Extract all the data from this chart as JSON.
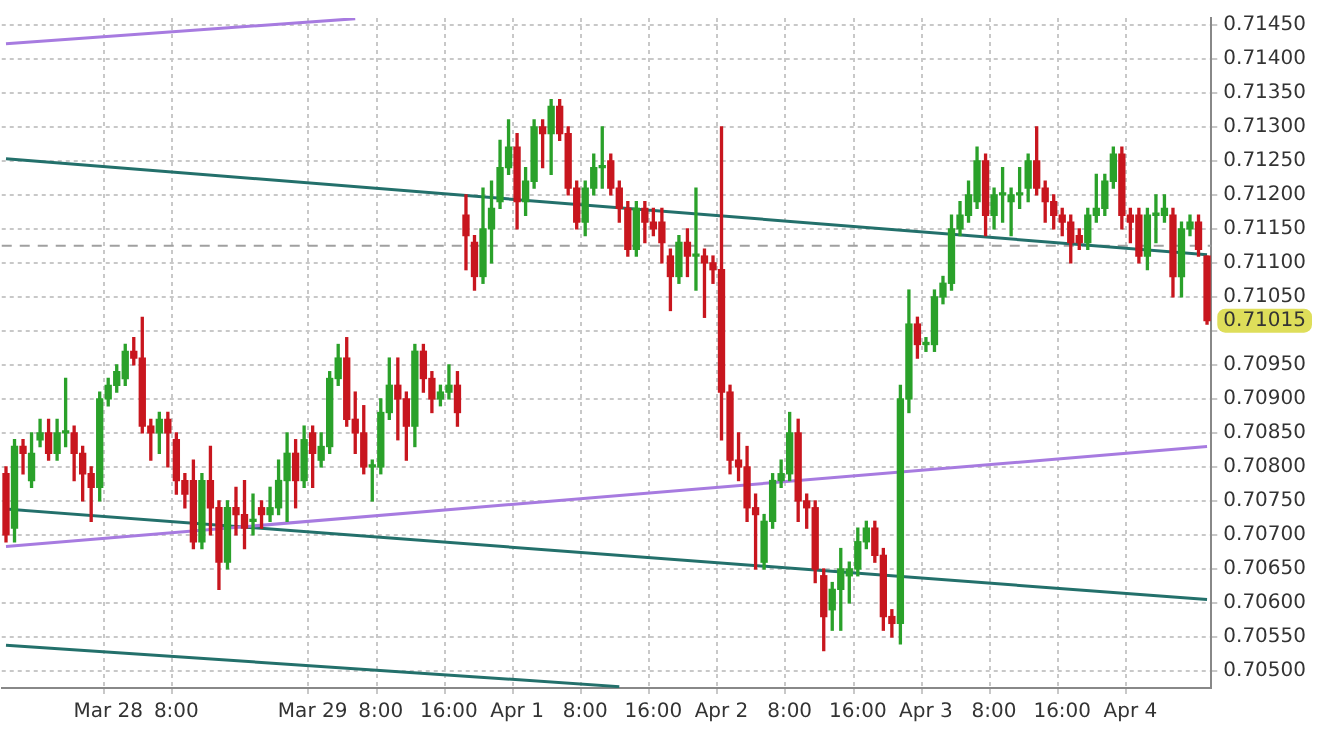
{
  "chart_data": {
    "type": "candlestick",
    "categories": [
      null,
      null,
      null,
      null,
      null,
      null,
      null,
      null,
      null,
      null,
      null,
      null,
      "Mar 28",
      null,
      null,
      null,
      null,
      null,
      null,
      null,
      "8:00",
      null,
      null,
      null,
      null,
      null,
      null,
      null,
      null,
      null,
      null,
      null,
      null,
      null,
      null,
      null,
      "Mar 29",
      null,
      null,
      null,
      null,
      null,
      null,
      null,
      "8:00",
      null,
      null,
      null,
      null,
      null,
      null,
      null,
      "16:00",
      null,
      null,
      null,
      null,
      null,
      null,
      null,
      "Apr 1",
      null,
      null,
      null,
      null,
      null,
      null,
      null,
      "8:00",
      null,
      null,
      null,
      null,
      null,
      null,
      null,
      "16:00",
      null,
      null,
      null,
      null,
      null,
      null,
      null,
      "Apr 2",
      null,
      null,
      null,
      null,
      null,
      null,
      null,
      "8:00",
      null,
      null,
      null,
      null,
      null,
      null,
      null,
      "16:00",
      null,
      null,
      null,
      null,
      null,
      null,
      null,
      "Apr 3",
      null,
      null,
      null,
      null,
      null,
      null,
      null,
      "8:00",
      null,
      null,
      null,
      null,
      null,
      null,
      null,
      "16:00",
      null,
      null,
      null,
      null,
      null,
      null,
      null,
      "Apr 4",
      null,
      null,
      null,
      null,
      null,
      null,
      null,
      null,
      null
    ],
    "ohlc": [
      [
        0.7079,
        0.708,
        0.7069,
        0.707
      ],
      [
        0.7071,
        0.7084,
        0.7069,
        0.7083
      ],
      [
        0.7083,
        0.7084,
        0.7079,
        0.7082
      ],
      [
        0.7078,
        0.7085,
        0.7077,
        0.7082
      ],
      [
        0.7084,
        0.7087,
        0.7083,
        0.7085
      ],
      [
        0.7085,
        0.7087,
        0.7081,
        0.7082
      ],
      [
        0.7082,
        0.7087,
        0.7081,
        0.7085
      ],
      [
        0.7085,
        0.7093,
        0.7083,
        0.7085
      ],
      [
        0.7085,
        0.7086,
        0.7078,
        0.7082
      ],
      [
        0.7082,
        0.7083,
        0.7075,
        0.7079
      ],
      [
        0.7079,
        0.708,
        0.7072,
        0.7077
      ],
      [
        0.7077,
        0.7091,
        0.7075,
        0.709
      ],
      [
        0.709,
        0.7093,
        0.7089,
        0.7092
      ],
      [
        0.7092,
        0.7095,
        0.7091,
        0.7094
      ],
      [
        0.7093,
        0.7098,
        0.7092,
        0.7097
      ],
      [
        0.7097,
        0.7099,
        0.7095,
        0.7096
      ],
      [
        0.7096,
        0.7102,
        0.7085,
        0.7086
      ],
      [
        0.7086,
        0.7087,
        0.7081,
        0.7085
      ],
      [
        0.7085,
        0.7088,
        0.7082,
        0.7087
      ],
      [
        0.7087,
        0.7088,
        0.708,
        0.7085
      ],
      [
        0.7084,
        0.7085,
        0.7076,
        0.7078
      ],
      [
        0.7078,
        0.7079,
        0.7074,
        0.7076
      ],
      [
        0.7078,
        0.7081,
        0.7068,
        0.7069
      ],
      [
        0.7069,
        0.7079,
        0.7068,
        0.7078
      ],
      [
        0.7078,
        0.7083,
        0.707,
        0.7074
      ],
      [
        0.7074,
        0.7075,
        0.7062,
        0.7066
      ],
      [
        0.7066,
        0.7075,
        0.7065,
        0.7074
      ],
      [
        0.7074,
        0.7077,
        0.707,
        0.7073
      ],
      [
        0.7073,
        0.7078,
        0.7068,
        0.7071
      ],
      [
        0.7072,
        0.7076,
        0.707,
        0.7072
      ],
      [
        0.7074,
        0.7075,
        0.7071,
        0.7073
      ],
      [
        0.7073,
        0.7077,
        0.7072,
        0.7074
      ],
      [
        0.7074,
        0.7081,
        0.7073,
        0.7078
      ],
      [
        0.7078,
        0.7085,
        0.7072,
        0.7082
      ],
      [
        0.7082,
        0.7084,
        0.7074,
        0.7078
      ],
      [
        0.7078,
        0.7086,
        0.7077,
        0.7084
      ],
      [
        0.7085,
        0.7086,
        0.7077,
        0.7082
      ],
      [
        0.7081,
        0.7085,
        0.708,
        0.7083
      ],
      [
        0.7083,
        0.7094,
        0.7082,
        0.7093
      ],
      [
        0.7093,
        0.7098,
        0.7092,
        0.7096
      ],
      [
        0.7096,
        0.7099,
        0.7086,
        0.7087
      ],
      [
        0.7087,
        0.7091,
        0.7082,
        0.7085
      ],
      [
        0.7085,
        0.7089,
        0.7079,
        0.708
      ],
      [
        0.708,
        0.7081,
        0.7075,
        0.708
      ],
      [
        0.708,
        0.709,
        0.7079,
        0.7088
      ],
      [
        0.7088,
        0.7096,
        0.7087,
        0.7092
      ],
      [
        0.7092,
        0.7096,
        0.7084,
        0.709
      ],
      [
        0.709,
        0.7091,
        0.7081,
        0.7086
      ],
      [
        0.7086,
        0.7098,
        0.7083,
        0.7097
      ],
      [
        0.7097,
        0.7098,
        0.7091,
        0.7093
      ],
      [
        0.7093,
        0.7094,
        0.7088,
        0.709
      ],
      [
        0.709,
        0.7092,
        0.7089,
        0.7091
      ],
      [
        0.7091,
        0.7095,
        0.709,
        0.7092
      ],
      [
        0.7092,
        0.7094,
        0.7086,
        0.7088
      ],
      [
        0.7117,
        0.712,
        0.7109,
        0.7114
      ],
      [
        0.7113,
        0.7114,
        0.7106,
        0.7108
      ],
      [
        0.7108,
        0.7121,
        0.7107,
        0.7115
      ],
      [
        0.7115,
        0.7122,
        0.711,
        0.7118
      ],
      [
        0.7119,
        0.7128,
        0.7118,
        0.7124
      ],
      [
        0.7124,
        0.7131,
        0.7123,
        0.7127
      ],
      [
        0.7127,
        0.7129,
        0.7115,
        0.7119
      ],
      [
        0.7119,
        0.7124,
        0.7117,
        0.7122
      ],
      [
        0.7122,
        0.7131,
        0.7121,
        0.713
      ],
      [
        0.713,
        0.7131,
        0.7124,
        0.7129
      ],
      [
        0.7129,
        0.7134,
        0.7123,
        0.7133
      ],
      [
        0.7133,
        0.7134,
        0.7128,
        0.7129
      ],
      [
        0.7129,
        0.713,
        0.712,
        0.7121
      ],
      [
        0.7121,
        0.7122,
        0.7115,
        0.7116
      ],
      [
        0.7116,
        0.7122,
        0.7114,
        0.7121
      ],
      [
        0.7121,
        0.7126,
        0.712,
        0.7124
      ],
      [
        0.7124,
        0.713,
        0.7121,
        0.7124
      ],
      [
        0.7125,
        0.7126,
        0.712,
        0.7121
      ],
      [
        0.7121,
        0.7122,
        0.7116,
        0.7118
      ],
      [
        0.7118,
        0.7119,
        0.7111,
        0.7112
      ],
      [
        0.7112,
        0.7119,
        0.7111,
        0.7118
      ],
      [
        0.7118,
        0.7119,
        0.7113,
        0.7116
      ],
      [
        0.7116,
        0.7118,
        0.7114,
        0.7115
      ],
      [
        0.7116,
        0.7118,
        0.711,
        0.7113
      ],
      [
        0.7111,
        0.7112,
        0.7103,
        0.7108
      ],
      [
        0.7108,
        0.7114,
        0.7107,
        0.7113
      ],
      [
        0.7113,
        0.7115,
        0.7108,
        0.7111
      ],
      [
        0.7111,
        0.7121,
        0.7106,
        0.7111
      ],
      [
        0.7111,
        0.7112,
        0.7102,
        0.711
      ],
      [
        0.711,
        0.7111,
        0.7107,
        0.7109
      ],
      [
        0.7109,
        0.713,
        0.7084,
        0.7091
      ],
      [
        0.7091,
        0.7092,
        0.7079,
        0.7081
      ],
      [
        0.7081,
        0.7085,
        0.7078,
        0.708
      ],
      [
        0.708,
        0.7083,
        0.7072,
        0.7074
      ],
      [
        0.7074,
        0.7076,
        0.7065,
        0.7073
      ],
      [
        0.7066,
        0.7073,
        0.7065,
        0.7072
      ],
      [
        0.7072,
        0.7079,
        0.7071,
        0.7078
      ],
      [
        0.7078,
        0.7081,
        0.7077,
        0.7079
      ],
      [
        0.7079,
        0.7088,
        0.7078,
        0.7085
      ],
      [
        0.7085,
        0.7087,
        0.7072,
        0.7075
      ],
      [
        0.7075,
        0.7076,
        0.7071,
        0.7074
      ],
      [
        0.7074,
        0.7075,
        0.7063,
        0.7065
      ],
      [
        0.7064,
        0.7065,
        0.7053,
        0.7058
      ],
      [
        0.7059,
        0.7063,
        0.7056,
        0.7062
      ],
      [
        0.7062,
        0.7068,
        0.7056,
        0.7065
      ],
      [
        0.7064,
        0.7066,
        0.706,
        0.7065
      ],
      [
        0.7065,
        0.7071,
        0.7064,
        0.7069
      ],
      [
        0.7069,
        0.7072,
        0.7068,
        0.7071
      ],
      [
        0.7071,
        0.7072,
        0.7066,
        0.7067
      ],
      [
        0.7067,
        0.7068,
        0.7056,
        0.7058
      ],
      [
        0.7058,
        0.7059,
        0.7055,
        0.7057
      ],
      [
        0.7057,
        0.7092,
        0.7054,
        0.709
      ],
      [
        0.709,
        0.7106,
        0.7088,
        0.7101
      ],
      [
        0.7101,
        0.7102,
        0.7096,
        0.7098
      ],
      [
        0.7098,
        0.7099,
        0.7097,
        0.7098
      ],
      [
        0.7098,
        0.7106,
        0.7097,
        0.7105
      ],
      [
        0.7105,
        0.7108,
        0.7104,
        0.7107
      ],
      [
        0.7107,
        0.7117,
        0.7106,
        0.7115
      ],
      [
        0.7115,
        0.7119,
        0.7114,
        0.7117
      ],
      [
        0.7117,
        0.7122,
        0.7116,
        0.712
      ],
      [
        0.7119,
        0.7127,
        0.7118,
        0.7125
      ],
      [
        0.7125,
        0.7126,
        0.7114,
        0.7117
      ],
      [
        0.7117,
        0.7121,
        0.7115,
        0.712
      ],
      [
        0.712,
        0.7124,
        0.7116,
        0.712
      ],
      [
        0.7119,
        0.7121,
        0.7114,
        0.712
      ],
      [
        0.712,
        0.7124,
        0.7118,
        0.712
      ],
      [
        0.7121,
        0.7126,
        0.7119,
        0.7125
      ],
      [
        0.7125,
        0.713,
        0.712,
        0.7121
      ],
      [
        0.7121,
        0.7122,
        0.7116,
        0.7119
      ],
      [
        0.7119,
        0.712,
        0.7115,
        0.7117
      ],
      [
        0.7117,
        0.7118,
        0.7114,
        0.7116
      ],
      [
        0.7116,
        0.7117,
        0.711,
        0.7113
      ],
      [
        0.7114,
        0.7115,
        0.7112,
        0.7113
      ],
      [
        0.7113,
        0.7118,
        0.7112,
        0.7117
      ],
      [
        0.7117,
        0.7123,
        0.7116,
        0.7118
      ],
      [
        0.7118,
        0.7123,
        0.7117,
        0.7122
      ],
      [
        0.7122,
        0.7127,
        0.7121,
        0.7126
      ],
      [
        0.7126,
        0.7127,
        0.7115,
        0.7117
      ],
      [
        0.7117,
        0.7118,
        0.7113,
        0.7116
      ],
      [
        0.7117,
        0.7118,
        0.711,
        0.7111
      ],
      [
        0.7111,
        0.7118,
        0.7109,
        0.7117
      ],
      [
        0.7117,
        0.712,
        0.7113,
        0.7117
      ],
      [
        0.7117,
        0.712,
        0.7116,
        0.7118
      ],
      [
        0.7117,
        0.7118,
        0.7105,
        0.7108
      ],
      [
        0.7108,
        0.7116,
        0.7105,
        0.7115
      ],
      [
        0.7115,
        0.7117,
        0.7114,
        0.7116
      ],
      [
        0.7116,
        0.7117,
        0.7111,
        0.7112
      ],
      [
        0.7111,
        0.7111,
        0.7101,
        0.71015
      ]
    ],
    "series": [
      {
        "type": "line",
        "color": "#a77be0",
        "values": [
          0.71422,
          null,
          null,
          null,
          null,
          null,
          null,
          null,
          null,
          null,
          null,
          null,
          null,
          null,
          null,
          null,
          null,
          null,
          null,
          null,
          null,
          null,
          null,
          null,
          null,
          null,
          null,
          null,
          null,
          null,
          null,
          null,
          null,
          null,
          null,
          null,
          null,
          null,
          null,
          null,
          null,
          0.71459,
          null,
          null,
          null,
          null,
          null,
          null,
          null,
          null,
          null,
          null,
          null,
          null,
          null,
          null,
          null,
          null,
          null,
          null,
          null,
          null,
          null,
          null,
          null,
          null,
          null,
          null,
          null,
          null,
          null,
          null,
          null,
          null,
          null,
          null,
          null,
          null,
          null,
          null,
          null,
          null,
          null,
          null,
          null,
          null,
          null,
          null,
          null,
          null,
          null,
          null,
          null,
          null,
          null,
          null,
          null,
          null,
          null,
          null,
          null,
          null,
          null,
          null,
          null,
          null,
          null,
          null,
          null,
          null,
          null,
          null,
          null,
          null,
          null,
          null,
          null,
          null,
          null,
          null,
          null,
          null,
          null,
          null,
          null,
          null,
          null,
          null,
          null,
          null,
          null,
          null,
          null,
          null,
          null,
          null,
          null,
          null,
          null,
          null,
          null,
          null
        ]
      },
      {
        "type": "line",
        "color": "#23706b",
        "values": [
          0.71253,
          null,
          null,
          null,
          null,
          null,
          null,
          null,
          null,
          null,
          null,
          null,
          null,
          null,
          null,
          null,
          null,
          null,
          null,
          null,
          null,
          null,
          null,
          null,
          null,
          null,
          null,
          null,
          null,
          null,
          null,
          null,
          null,
          null,
          null,
          null,
          null,
          null,
          null,
          null,
          null,
          null,
          null,
          null,
          null,
          null,
          null,
          null,
          null,
          null,
          null,
          null,
          null,
          null,
          null,
          null,
          null,
          null,
          null,
          null,
          null,
          null,
          null,
          null,
          null,
          null,
          null,
          null,
          null,
          null,
          null,
          null,
          null,
          null,
          null,
          null,
          null,
          null,
          null,
          null,
          null,
          null,
          null,
          null,
          null,
          null,
          null,
          null,
          null,
          null,
          null,
          null,
          null,
          null,
          null,
          null,
          null,
          null,
          null,
          null,
          null,
          null,
          null,
          null,
          null,
          null,
          null,
          null,
          null,
          null,
          null,
          null,
          null,
          null,
          null,
          null,
          null,
          null,
          null,
          null,
          null,
          null,
          null,
          null,
          null,
          null,
          null,
          null,
          null,
          null,
          null,
          null,
          null,
          null,
          null,
          null,
          null,
          null,
          null,
          null,
          null,
          0.71112
        ]
      },
      {
        "type": "line",
        "color": "#a77be0",
        "values": [
          0.70683,
          null,
          null,
          null,
          null,
          null,
          null,
          null,
          null,
          null,
          null,
          null,
          null,
          null,
          null,
          null,
          null,
          null,
          null,
          null,
          null,
          null,
          null,
          null,
          null,
          null,
          null,
          null,
          null,
          null,
          null,
          null,
          null,
          null,
          null,
          null,
          null,
          null,
          null,
          null,
          null,
          null,
          null,
          null,
          null,
          null,
          null,
          null,
          null,
          null,
          null,
          null,
          null,
          null,
          null,
          null,
          null,
          null,
          null,
          null,
          null,
          null,
          null,
          null,
          null,
          null,
          null,
          null,
          null,
          null,
          null,
          null,
          null,
          null,
          null,
          null,
          null,
          null,
          null,
          null,
          null,
          null,
          null,
          null,
          null,
          null,
          null,
          null,
          null,
          null,
          null,
          null,
          null,
          null,
          null,
          null,
          null,
          null,
          null,
          null,
          null,
          null,
          null,
          null,
          null,
          null,
          null,
          null,
          null,
          null,
          null,
          null,
          null,
          null,
          null,
          null,
          null,
          null,
          null,
          null,
          null,
          null,
          null,
          null,
          null,
          null,
          null,
          null,
          null,
          null,
          null,
          null,
          null,
          null,
          null,
          null,
          null,
          null,
          null,
          null,
          null,
          0.7083
        ]
      },
      {
        "type": "line",
        "color": "#23706b",
        "values": [
          0.70738,
          null,
          null,
          null,
          null,
          null,
          null,
          null,
          null,
          null,
          null,
          null,
          null,
          null,
          null,
          null,
          null,
          null,
          null,
          null,
          null,
          null,
          null,
          null,
          null,
          null,
          null,
          null,
          null,
          null,
          null,
          null,
          null,
          null,
          null,
          null,
          null,
          null,
          null,
          null,
          null,
          null,
          null,
          null,
          null,
          null,
          null,
          null,
          null,
          null,
          null,
          null,
          null,
          null,
          null,
          null,
          null,
          null,
          null,
          null,
          null,
          null,
          null,
          null,
          null,
          null,
          null,
          null,
          null,
          null,
          null,
          null,
          null,
          null,
          null,
          null,
          null,
          null,
          null,
          null,
          null,
          null,
          null,
          null,
          null,
          null,
          null,
          null,
          null,
          null,
          null,
          null,
          null,
          null,
          null,
          null,
          null,
          null,
          null,
          null,
          null,
          null,
          null,
          null,
          null,
          null,
          null,
          null,
          null,
          null,
          null,
          null,
          null,
          null,
          null,
          null,
          null,
          null,
          null,
          null,
          null,
          null,
          null,
          null,
          null,
          null,
          null,
          null,
          null,
          null,
          null,
          null,
          null,
          null,
          null,
          null,
          null,
          null,
          null,
          null,
          null,
          0.70605
        ]
      },
      {
        "type": "line",
        "color": "#23706b",
        "values": [
          0.70538,
          null,
          null,
          null,
          null,
          null,
          null,
          null,
          null,
          null,
          null,
          null,
          null,
          null,
          null,
          null,
          null,
          null,
          null,
          null,
          null,
          null,
          null,
          null,
          null,
          null,
          null,
          null,
          null,
          null,
          null,
          null,
          null,
          null,
          null,
          null,
          null,
          null,
          null,
          null,
          null,
          null,
          null,
          null,
          null,
          null,
          null,
          null,
          null,
          null,
          null,
          null,
          null,
          null,
          null,
          null,
          null,
          null,
          null,
          null,
          null,
          null,
          null,
          null,
          null,
          null,
          null,
          null,
          null,
          null,
          null,
          null,
          0.70477,
          null,
          null,
          null,
          null,
          null,
          null,
          null,
          null,
          null,
          null,
          null,
          null,
          null,
          null,
          null,
          null,
          null,
          null,
          null,
          null,
          null,
          null,
          null,
          null,
          null,
          null,
          null,
          null,
          null,
          null,
          null,
          null,
          null,
          null,
          null,
          null,
          null,
          null,
          null,
          null,
          null,
          null,
          null,
          null,
          null,
          null,
          null,
          null,
          null,
          null,
          null,
          null,
          null,
          null,
          null,
          null,
          null,
          null,
          null,
          null,
          null,
          null,
          null,
          null,
          null,
          null,
          null,
          null,
          null
        ]
      }
    ],
    "ylim": [
      0.70475,
      0.7146
    ],
    "yticks": [
      {
        "value": 0.705,
        "label": "0.70500"
      },
      {
        "value": 0.7055,
        "label": "0.70550"
      },
      {
        "value": 0.706,
        "label": "0.70600"
      },
      {
        "value": 0.7065,
        "label": "0.70650"
      },
      {
        "value": 0.707,
        "label": "0.70700"
      },
      {
        "value": 0.7075,
        "label": "0.70750"
      },
      {
        "value": 0.708,
        "label": "0.70800"
      },
      {
        "value": 0.7085,
        "label": "0.70850"
      },
      {
        "value": 0.709,
        "label": "0.70900"
      },
      {
        "value": 0.7095,
        "label": "0.70950"
      },
      {
        "value": 0.71,
        "label": null
      },
      {
        "value": 0.7105,
        "label": "0.71050"
      },
      {
        "value": 0.711,
        "label": "0.71100"
      },
      {
        "value": 0.7115,
        "label": "0.71150"
      },
      {
        "value": 0.712,
        "label": "0.71200"
      },
      {
        "value": 0.7125,
        "label": "0.71250"
      },
      {
        "value": 0.713,
        "label": "0.71300"
      },
      {
        "value": 0.7135,
        "label": "0.71350"
      },
      {
        "value": 0.714,
        "label": "0.71400"
      },
      {
        "value": 0.7145,
        "label": "0.71450"
      }
    ],
    "ref_lines": [
      {
        "axis": "y",
        "value": 0.71125,
        "color": "#a0a0a0",
        "line_style": "dashed"
      }
    ],
    "annotations": [
      "0.71015"
    ],
    "grid": true,
    "legend": false,
    "marker": "none"
  }
}
